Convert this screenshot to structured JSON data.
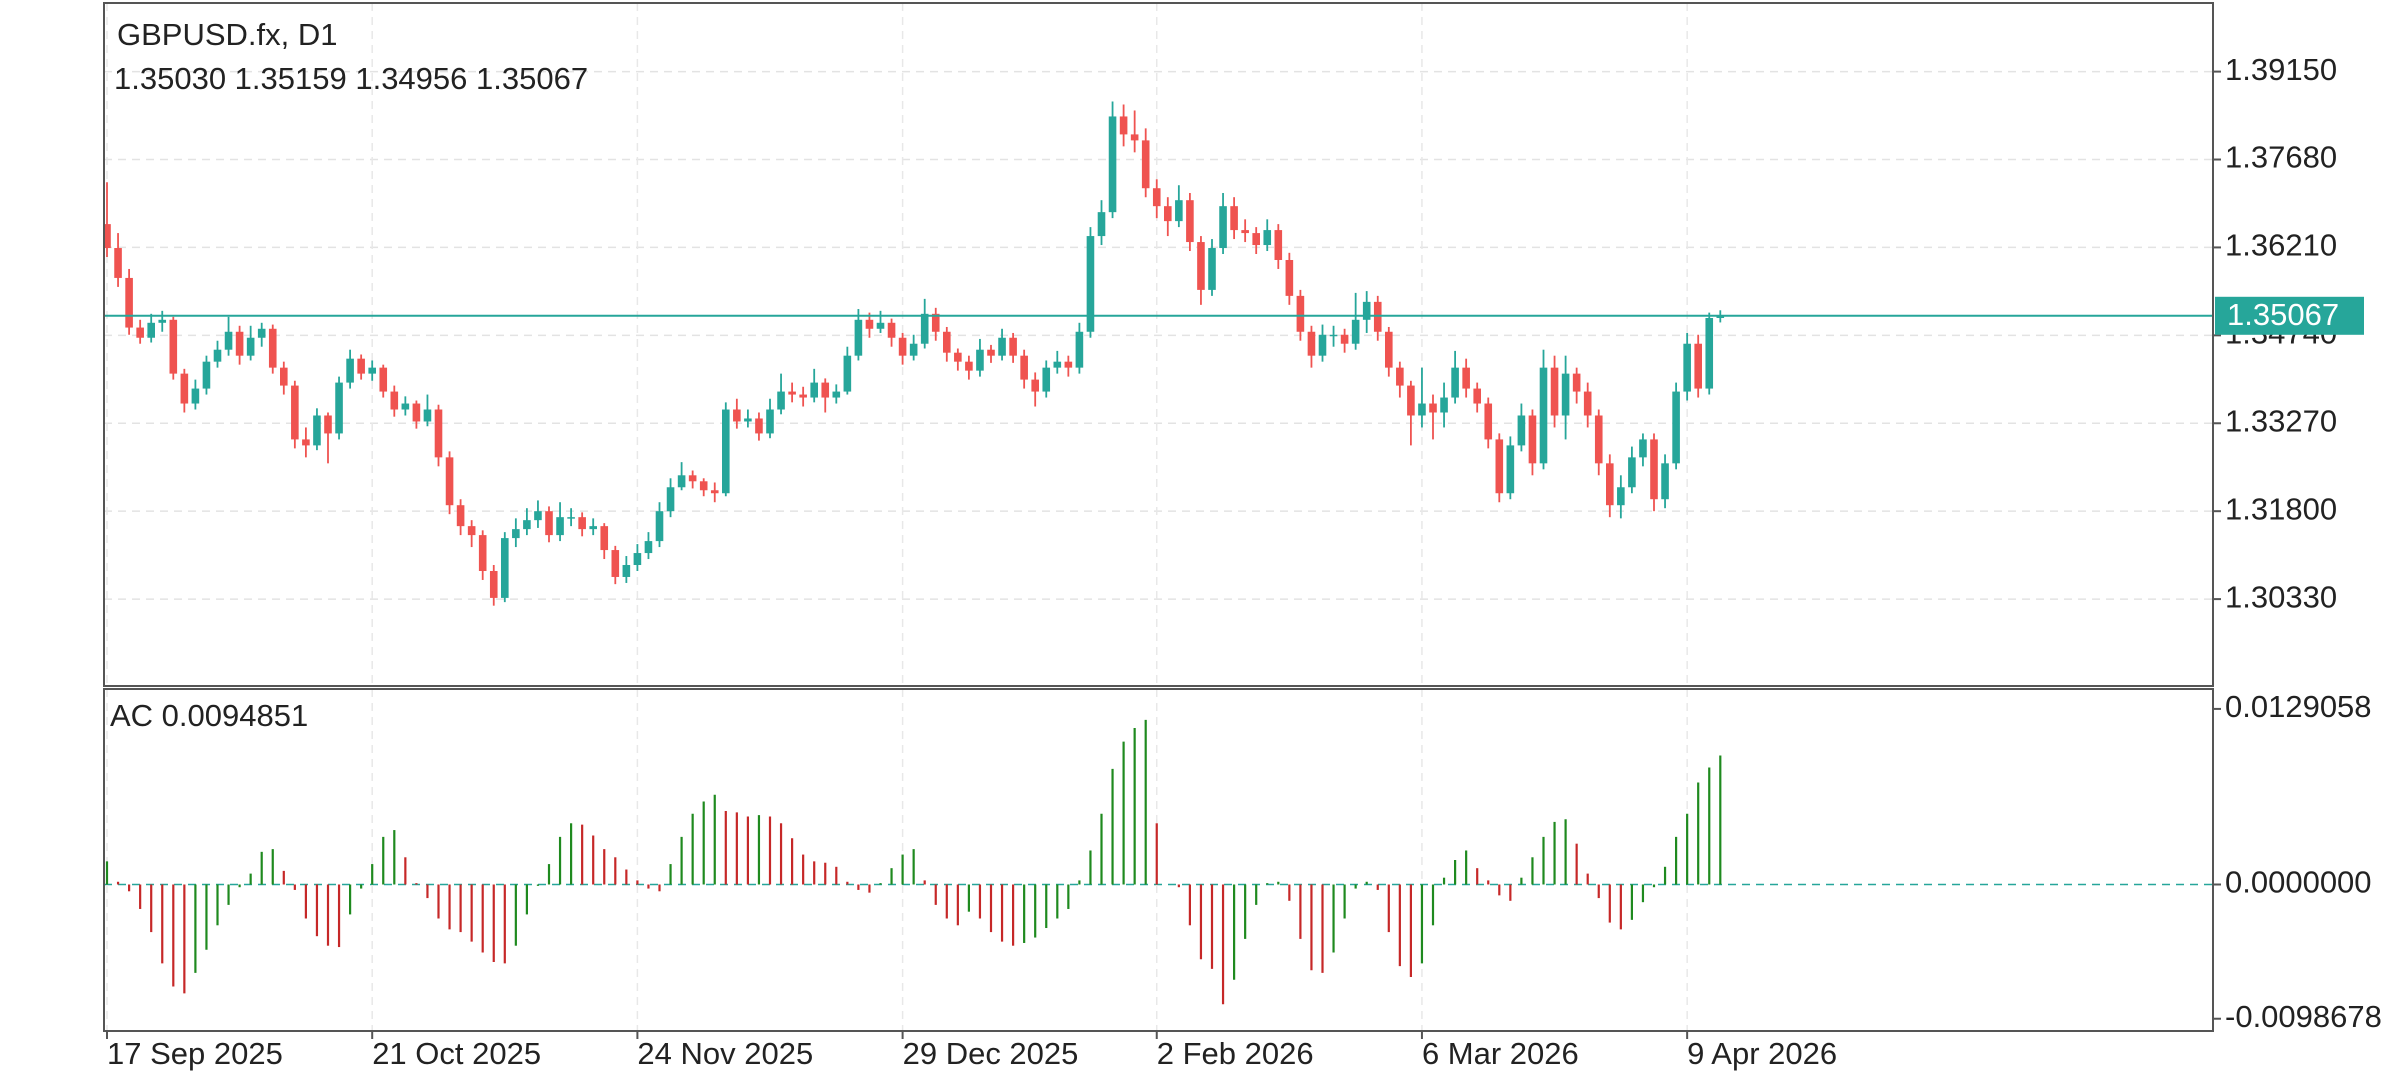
{
  "chart_data": [
    {
      "type": "candlestick",
      "title": "GBPUSD.fx, D1",
      "ohlc_label": "1.35030 1.35159 1.34956 1.35067",
      "up_color": "#26a69a",
      "down_color": "#ef5350",
      "price_line_color": "#26a69a",
      "grid": true,
      "ylim": [
        1.28877,
        1.40297
      ],
      "yticks": [
        {
          "value": 1.3915,
          "label": "1.39150"
        },
        {
          "value": 1.3768,
          "label": "1.37680"
        },
        {
          "value": 1.3621,
          "label": "1.36210"
        },
        {
          "value": 1.3474,
          "label": "1.34740"
        },
        {
          "value": 1.3327,
          "label": "1.33270"
        },
        {
          "value": 1.318,
          "label": "1.31800"
        },
        {
          "value": 1.3033,
          "label": "1.30330"
        }
      ],
      "candles": [
        [
          1.366,
          1.373,
          1.3605,
          1.362
        ],
        [
          1.362,
          1.3645,
          1.3555,
          1.357
        ],
        [
          1.357,
          1.3585,
          1.3475,
          1.3487
        ],
        [
          1.3487,
          1.35,
          1.346,
          1.347
        ],
        [
          1.347,
          1.351,
          1.3462,
          1.3495
        ],
        [
          1.3495,
          1.3515,
          1.348,
          1.35
        ],
        [
          1.35,
          1.3505,
          1.34,
          1.341
        ],
        [
          1.341,
          1.3418,
          1.3345,
          1.336
        ],
        [
          1.336,
          1.34,
          1.335,
          1.3385
        ],
        [
          1.3385,
          1.344,
          1.3375,
          1.343
        ],
        [
          1.343,
          1.3465,
          1.342,
          1.345
        ],
        [
          1.345,
          1.3505,
          1.344,
          1.348
        ],
        [
          1.348,
          1.349,
          1.3425,
          1.344
        ],
        [
          1.344,
          1.349,
          1.3432,
          1.347
        ],
        [
          1.347,
          1.3495,
          1.3455,
          1.3485
        ],
        [
          1.3485,
          1.3492,
          1.341,
          1.342
        ],
        [
          1.342,
          1.343,
          1.3375,
          1.339
        ],
        [
          1.339,
          1.3398,
          1.3285,
          1.33
        ],
        [
          1.33,
          1.332,
          1.327,
          1.329
        ],
        [
          1.329,
          1.3352,
          1.3282,
          1.334
        ],
        [
          1.334,
          1.3345,
          1.326,
          1.331
        ],
        [
          1.331,
          1.3405,
          1.33,
          1.3395
        ],
        [
          1.3395,
          1.345,
          1.3385,
          1.3435
        ],
        [
          1.3435,
          1.3442,
          1.34,
          1.341
        ],
        [
          1.341,
          1.3432,
          1.3398,
          1.342
        ],
        [
          1.342,
          1.3425,
          1.337,
          1.338
        ],
        [
          1.338,
          1.339,
          1.3338,
          1.335
        ],
        [
          1.335,
          1.3372,
          1.334,
          1.336
        ],
        [
          1.336,
          1.3365,
          1.3318,
          1.333
        ],
        [
          1.333,
          1.3375,
          1.3322,
          1.335
        ],
        [
          1.335,
          1.3358,
          1.3255,
          1.327
        ],
        [
          1.327,
          1.328,
          1.3175,
          1.319
        ],
        [
          1.319,
          1.32,
          1.314,
          1.3155
        ],
        [
          1.3155,
          1.3165,
          1.312,
          1.314
        ],
        [
          1.314,
          1.3148,
          1.3065,
          1.308
        ],
        [
          1.308,
          1.309,
          1.3022,
          1.3035
        ],
        [
          1.3035,
          1.3145,
          1.3028,
          1.3135
        ],
        [
          1.3135,
          1.3168,
          1.312,
          1.315
        ],
        [
          1.315,
          1.3185,
          1.314,
          1.3165
        ],
        [
          1.3165,
          1.3198,
          1.3152,
          1.318
        ],
        [
          1.318,
          1.3188,
          1.3128,
          1.314
        ],
        [
          1.314,
          1.3195,
          1.313,
          1.317
        ],
        [
          1.317,
          1.3185,
          1.3155,
          1.317
        ],
        [
          1.317,
          1.3178,
          1.3138,
          1.315
        ],
        [
          1.315,
          1.3168,
          1.314,
          1.3155
        ],
        [
          1.3155,
          1.316,
          1.31,
          1.3115
        ],
        [
          1.3115,
          1.3122,
          1.3058,
          1.307
        ],
        [
          1.307,
          1.3105,
          1.306,
          1.309
        ],
        [
          1.309,
          1.3125,
          1.308,
          1.311
        ],
        [
          1.311,
          1.3145,
          1.31,
          1.313
        ],
        [
          1.313,
          1.3195,
          1.312,
          1.318
        ],
        [
          1.318,
          1.3235,
          1.317,
          1.322
        ],
        [
          1.322,
          1.3262,
          1.3215,
          1.324
        ],
        [
          1.324,
          1.3248,
          1.3218,
          1.323
        ],
        [
          1.323,
          1.3235,
          1.3205,
          1.3215
        ],
        [
          1.3215,
          1.3228,
          1.3195,
          1.321
        ],
        [
          1.321,
          1.3362,
          1.3205,
          1.335
        ],
        [
          1.335,
          1.3368,
          1.3318,
          1.333
        ],
        [
          1.333,
          1.335,
          1.332,
          1.3335
        ],
        [
          1.3335,
          1.3345,
          1.3298,
          1.331
        ],
        [
          1.331,
          1.3368,
          1.3302,
          1.335
        ],
        [
          1.335,
          1.341,
          1.3342,
          1.338
        ],
        [
          1.338,
          1.3395,
          1.3362,
          1.3375
        ],
        [
          1.3375,
          1.3388,
          1.3355,
          1.337
        ],
        [
          1.337,
          1.3418,
          1.3362,
          1.3395
        ],
        [
          1.3395,
          1.3402,
          1.3345,
          1.337
        ],
        [
          1.337,
          1.3392,
          1.336,
          1.338
        ],
        [
          1.338,
          1.3455,
          1.3375,
          1.344
        ],
        [
          1.344,
          1.3518,
          1.3432,
          1.35
        ],
        [
          1.35,
          1.3512,
          1.347,
          1.3485
        ],
        [
          1.3485,
          1.3515,
          1.3478,
          1.3495
        ],
        [
          1.3495,
          1.3502,
          1.3455,
          1.347
        ],
        [
          1.347,
          1.3478,
          1.3425,
          1.344
        ],
        [
          1.344,
          1.3475,
          1.3432,
          1.346
        ],
        [
          1.346,
          1.3535,
          1.3452,
          1.351
        ],
        [
          1.351,
          1.352,
          1.3465,
          1.348
        ],
        [
          1.348,
          1.3488,
          1.343,
          1.3445
        ],
        [
          1.3445,
          1.3452,
          1.3415,
          1.343
        ],
        [
          1.343,
          1.344,
          1.34,
          1.3415
        ],
        [
          1.3415,
          1.3468,
          1.3405,
          1.345
        ],
        [
          1.345,
          1.3458,
          1.3428,
          1.344
        ],
        [
          1.344,
          1.3485,
          1.3432,
          1.347
        ],
        [
          1.347,
          1.3478,
          1.3428,
          1.344
        ],
        [
          1.344,
          1.345,
          1.3385,
          1.34
        ],
        [
          1.34,
          1.3412,
          1.3355,
          1.338
        ],
        [
          1.338,
          1.3432,
          1.337,
          1.342
        ],
        [
          1.342,
          1.3448,
          1.341,
          1.343
        ],
        [
          1.343,
          1.344,
          1.3405,
          1.342
        ],
        [
          1.342,
          1.3495,
          1.341,
          1.348
        ],
        [
          1.348,
          1.3655,
          1.347,
          1.364
        ],
        [
          1.364,
          1.37,
          1.3625,
          1.368
        ],
        [
          1.368,
          1.3865,
          1.367,
          1.384
        ],
        [
          1.384,
          1.386,
          1.379,
          1.381
        ],
        [
          1.381,
          1.385,
          1.378,
          1.38
        ],
        [
          1.38,
          1.382,
          1.3705,
          1.372
        ],
        [
          1.372,
          1.3735,
          1.367,
          1.369
        ],
        [
          1.369,
          1.3705,
          1.364,
          1.3665
        ],
        [
          1.3665,
          1.3725,
          1.3655,
          1.37
        ],
        [
          1.37,
          1.3712,
          1.3615,
          1.363
        ],
        [
          1.363,
          1.364,
          1.3525,
          1.355
        ],
        [
          1.355,
          1.3635,
          1.354,
          1.362
        ],
        [
          1.362,
          1.3712,
          1.361,
          1.369
        ],
        [
          1.369,
          1.3705,
          1.3635,
          1.365
        ],
        [
          1.365,
          1.3668,
          1.363,
          1.3645
        ],
        [
          1.3645,
          1.3655,
          1.361,
          1.3625
        ],
        [
          1.3625,
          1.3668,
          1.3615,
          1.365
        ],
        [
          1.365,
          1.366,
          1.3585,
          1.36
        ],
        [
          1.36,
          1.3612,
          1.3525,
          1.354
        ],
        [
          1.354,
          1.355,
          1.3465,
          1.348
        ],
        [
          1.348,
          1.349,
          1.342,
          1.344
        ],
        [
          1.344,
          1.3492,
          1.343,
          1.3475
        ],
        [
          1.3475,
          1.349,
          1.3455,
          1.3475
        ],
        [
          1.3475,
          1.3485,
          1.3445,
          1.346
        ],
        [
          1.346,
          1.3545,
          1.345,
          1.35
        ],
        [
          1.35,
          1.3548,
          1.3478,
          1.353
        ],
        [
          1.353,
          1.354,
          1.3465,
          1.348
        ],
        [
          1.348,
          1.3488,
          1.3405,
          1.342
        ],
        [
          1.342,
          1.343,
          1.337,
          1.339
        ],
        [
          1.339,
          1.3398,
          1.329,
          1.334
        ],
        [
          1.334,
          1.342,
          1.332,
          1.336
        ],
        [
          1.336,
          1.3375,
          1.33,
          1.3345
        ],
        [
          1.3345,
          1.3395,
          1.332,
          1.337
        ],
        [
          1.337,
          1.3448,
          1.336,
          1.342
        ],
        [
          1.342,
          1.3435,
          1.337,
          1.3385
        ],
        [
          1.3385,
          1.3395,
          1.3345,
          1.336
        ],
        [
          1.336,
          1.337,
          1.3285,
          1.33
        ],
        [
          1.33,
          1.331,
          1.3195,
          1.321
        ],
        [
          1.321,
          1.3305,
          1.32,
          1.329
        ],
        [
          1.329,
          1.336,
          1.328,
          1.334
        ],
        [
          1.334,
          1.335,
          1.324,
          1.326
        ],
        [
          1.326,
          1.345,
          1.325,
          1.342
        ],
        [
          1.342,
          1.344,
          1.332,
          1.334
        ],
        [
          1.334,
          1.344,
          1.33,
          1.341
        ],
        [
          1.341,
          1.342,
          1.336,
          1.338
        ],
        [
          1.338,
          1.3395,
          1.332,
          1.334
        ],
        [
          1.334,
          1.335,
          1.324,
          1.326
        ],
        [
          1.326,
          1.3275,
          1.317,
          1.319
        ],
        [
          1.319,
          1.324,
          1.3168,
          1.322
        ],
        [
          1.322,
          1.3288,
          1.321,
          1.327
        ],
        [
          1.327,
          1.331,
          1.3255,
          1.33
        ],
        [
          1.33,
          1.331,
          1.318,
          1.32
        ],
        [
          1.32,
          1.3275,
          1.3185,
          1.326
        ],
        [
          1.326,
          1.3395,
          1.325,
          1.338
        ],
        [
          1.338,
          1.3478,
          1.3365,
          1.346
        ],
        [
          1.346,
          1.3475,
          1.337,
          1.3385
        ],
        [
          1.3385,
          1.3512,
          1.3375,
          1.3503
        ],
        [
          1.3503,
          1.35159,
          1.34956,
          1.35067
        ]
      ]
    },
    {
      "type": "histogram_indicator",
      "title": "AC 0.0094851",
      "up_color": "#1f8a1f",
      "down_color": "#c62828",
      "zero_line_color": "#26a69a",
      "ylim": [
        -0.01077,
        0.01437
      ],
      "yticks": [
        {
          "value": 0.0129058,
          "label": "0.0129058"
        },
        {
          "value": 0,
          "label": "0.0000000"
        },
        {
          "value": -0.0098678,
          "label": "-0.0098678"
        }
      ],
      "xticks": [
        {
          "value": 0,
          "label": "17 Sep 2025"
        },
        {
          "value": 24,
          "label": "21 Oct 2025"
        },
        {
          "value": 48,
          "label": "24 Nov 2025"
        },
        {
          "value": 72,
          "label": "29 Dec 2025"
        },
        {
          "value": 95,
          "label": "2 Feb 2026"
        },
        {
          "value": 119,
          "label": "6 Mar 2026"
        },
        {
          "value": 143,
          "label": "9 Apr 2026"
        }
      ],
      "values": [
        0.0017,
        0.0002,
        -0.0005,
        -0.0018,
        -0.0035,
        -0.0058,
        -0.0075,
        -0.008,
        -0.0065,
        -0.0048,
        -0.003,
        -0.0015,
        -0.0002,
        0.0008,
        0.0024,
        0.0026,
        0.001,
        -0.0004,
        -0.0025,
        -0.0038,
        -0.0045,
        -0.0046,
        -0.0022,
        -0.0003,
        0.0015,
        0.0035,
        0.004,
        0.002,
        0.0001,
        -0.001,
        -0.0025,
        -0.0033,
        -0.0035,
        -0.0042,
        -0.005,
        -0.0057,
        -0.0058,
        -0.0045,
        -0.0022,
        -0.0001,
        0.0015,
        0.0035,
        0.0045,
        0.0044,
        0.0036,
        0.0026,
        0.002,
        0.0011,
        0.0003,
        -0.0003,
        -0.0005,
        0.0015,
        0.0035,
        0.0052,
        0.0061,
        0.0066,
        0.0054,
        0.0053,
        0.005,
        0.0051,
        0.005,
        0.0045,
        0.0034,
        0.0022,
        0.0017,
        0.0016,
        0.0013,
        0.0002,
        -0.0004,
        -0.0006,
        0.0001,
        0.0012,
        0.0022,
        0.0026,
        0.0003,
        -0.0015,
        -0.0025,
        -0.003,
        -0.002,
        -0.0025,
        -0.0035,
        -0.0042,
        -0.0045,
        -0.0043,
        -0.0039,
        -0.0032,
        -0.0025,
        -0.0018,
        0.0003,
        0.0025,
        0.0052,
        0.0085,
        0.0105,
        0.0115,
        0.0121,
        0.0045,
        0,
        -0.0002,
        -0.003,
        -0.0055,
        -0.0062,
        -0.0088,
        -0.007,
        -0.004,
        -0.0015,
        0.0001,
        0.0002,
        -0.0012,
        -0.004,
        -0.0063,
        -0.0065,
        -0.005,
        -0.0025,
        -0.0003,
        0.0002,
        -0.0004,
        -0.0035,
        -0.006,
        -0.0068,
        -0.0058,
        -0.003,
        0.0005,
        0.0018,
        0.0025,
        0.0012,
        0.0003,
        -0.0008,
        -0.0012,
        0.0005,
        0.002,
        0.0035,
        0.0046,
        0.0048,
        0.003,
        0.0008,
        -0.001,
        -0.0028,
        -0.0033,
        -0.0026,
        -0.0013,
        -0.0002,
        0.0013,
        0.0035,
        0.0052,
        0.0075,
        0.0086,
        0.0094851
      ]
    }
  ]
}
